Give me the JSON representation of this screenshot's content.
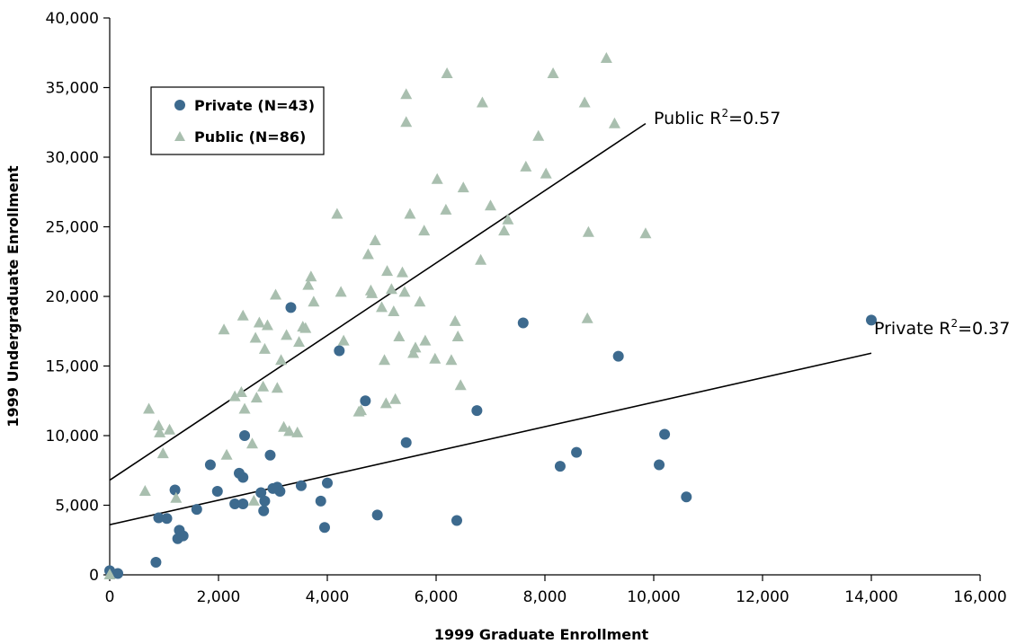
{
  "chart_data": {
    "type": "scatter",
    "xlabel": "1999 Graduate Enrollment",
    "ylabel": "1999 Undergraduate Enrollment",
    "xlim": [
      0,
      16000
    ],
    "ylim": [
      0,
      40000
    ],
    "x_ticks": [
      0,
      2000,
      4000,
      6000,
      8000,
      10000,
      12000,
      14000,
      16000
    ],
    "x_tick_labels": [
      "0",
      "2,000",
      "4,000",
      "6,000",
      "8,000",
      "10,000",
      "12,000",
      "14,000",
      "16,000"
    ],
    "y_ticks": [
      0,
      5000,
      10000,
      15000,
      20000,
      25000,
      30000,
      35000,
      40000
    ],
    "y_tick_labels": [
      "0",
      "5,000",
      "10,000",
      "15,000",
      "20,000",
      "25,000",
      "30,000",
      "35,000",
      "40,000"
    ],
    "grid": false,
    "legend_position": "top-left",
    "series": [
      {
        "name": "Private (N=43)",
        "marker": "circle",
        "color": "#3d6a8e",
        "points": [
          [
            0,
            300
          ],
          [
            150,
            100
          ],
          [
            850,
            900
          ],
          [
            900,
            4100
          ],
          [
            1050,
            4050
          ],
          [
            1200,
            6100
          ],
          [
            1250,
            2600
          ],
          [
            1280,
            3200
          ],
          [
            1350,
            2800
          ],
          [
            1600,
            4700
          ],
          [
            1850,
            7900
          ],
          [
            1980,
            6000
          ],
          [
            2300,
            5100
          ],
          [
            2380,
            7300
          ],
          [
            2450,
            7000
          ],
          [
            2450,
            5100
          ],
          [
            2480,
            10000
          ],
          [
            2780,
            5900
          ],
          [
            2830,
            4600
          ],
          [
            2850,
            5300
          ],
          [
            2950,
            8600
          ],
          [
            3080,
            6300
          ],
          [
            3130,
            6000
          ],
          [
            3330,
            19200
          ],
          [
            3520,
            6400
          ],
          [
            3880,
            5300
          ],
          [
            3950,
            3400
          ],
          [
            4000,
            6600
          ],
          [
            4220,
            16100
          ],
          [
            4700,
            12500
          ],
          [
            4920,
            4300
          ],
          [
            5450,
            9500
          ],
          [
            6380,
            3900
          ],
          [
            6750,
            11800
          ],
          [
            7600,
            18100
          ],
          [
            8280,
            7800
          ],
          [
            8580,
            8800
          ],
          [
            9350,
            15700
          ],
          [
            10100,
            7900
          ],
          [
            10200,
            10100
          ],
          [
            10600,
            5600
          ],
          [
            14000,
            18300
          ],
          [
            3000,
            6200
          ]
        ],
        "trend": {
          "intercept": 3600,
          "slope": 0.88,
          "x_end": 14000,
          "label": "Private R",
          "r2": "=0.37"
        }
      },
      {
        "name": "Public (N=86)",
        "marker": "triangle",
        "color": "#a9bfaf",
        "points": [
          [
            0,
            0
          ],
          [
            650,
            6000
          ],
          [
            720,
            11900
          ],
          [
            900,
            10700
          ],
          [
            920,
            10200
          ],
          [
            980,
            8700
          ],
          [
            1100,
            10400
          ],
          [
            1220,
            5500
          ],
          [
            2100,
            17600
          ],
          [
            2150,
            8600
          ],
          [
            2300,
            12800
          ],
          [
            2420,
            13100
          ],
          [
            2450,
            18600
          ],
          [
            2480,
            11900
          ],
          [
            2620,
            9400
          ],
          [
            2650,
            5300
          ],
          [
            2680,
            17000
          ],
          [
            2700,
            12700
          ],
          [
            2750,
            18100
          ],
          [
            2820,
            13500
          ],
          [
            2850,
            16200
          ],
          [
            2900,
            17900
          ],
          [
            3050,
            20100
          ],
          [
            3080,
            13400
          ],
          [
            3150,
            15400
          ],
          [
            3200,
            10600
          ],
          [
            3250,
            17200
          ],
          [
            3300,
            10300
          ],
          [
            3450,
            10200
          ],
          [
            3480,
            16700
          ],
          [
            3550,
            17800
          ],
          [
            3650,
            20800
          ],
          [
            3700,
            21400
          ],
          [
            3750,
            19600
          ],
          [
            4180,
            25900
          ],
          [
            4250,
            20300
          ],
          [
            4300,
            16800
          ],
          [
            4580,
            11700
          ],
          [
            4620,
            11800
          ],
          [
            4750,
            23000
          ],
          [
            4820,
            20200
          ],
          [
            4880,
            24000
          ],
          [
            5000,
            19200
          ],
          [
            5050,
            15400
          ],
          [
            5080,
            12300
          ],
          [
            5100,
            21800
          ],
          [
            5180,
            20500
          ],
          [
            5220,
            18900
          ],
          [
            5250,
            12600
          ],
          [
            5320,
            17100
          ],
          [
            5380,
            21700
          ],
          [
            5420,
            20300
          ],
          [
            5450,
            34500
          ],
          [
            5450,
            32500
          ],
          [
            5520,
            25900
          ],
          [
            5580,
            15900
          ],
          [
            5620,
            16300
          ],
          [
            5700,
            19600
          ],
          [
            5780,
            24700
          ],
          [
            5800,
            16800
          ],
          [
            5980,
            15500
          ],
          [
            6020,
            28400
          ],
          [
            6180,
            26200
          ],
          [
            6200,
            36000
          ],
          [
            6280,
            15400
          ],
          [
            6350,
            18200
          ],
          [
            6400,
            17100
          ],
          [
            6450,
            13600
          ],
          [
            6500,
            27800
          ],
          [
            6820,
            22600
          ],
          [
            6850,
            33900
          ],
          [
            7000,
            26500
          ],
          [
            7250,
            24700
          ],
          [
            7320,
            25500
          ],
          [
            7650,
            29300
          ],
          [
            7880,
            31500
          ],
          [
            8020,
            28800
          ],
          [
            8150,
            36000
          ],
          [
            8730,
            33900
          ],
          [
            8780,
            18400
          ],
          [
            8800,
            24600
          ],
          [
            9130,
            37100
          ],
          [
            9280,
            32400
          ],
          [
            9850,
            24500
          ],
          [
            4800,
            20400
          ],
          [
            3600,
            17700
          ]
        ],
        "trend": {
          "intercept": 6800,
          "slope": 2.6,
          "x_end": 9850,
          "label": "Public R",
          "r2": "=0.57"
        }
      }
    ]
  }
}
